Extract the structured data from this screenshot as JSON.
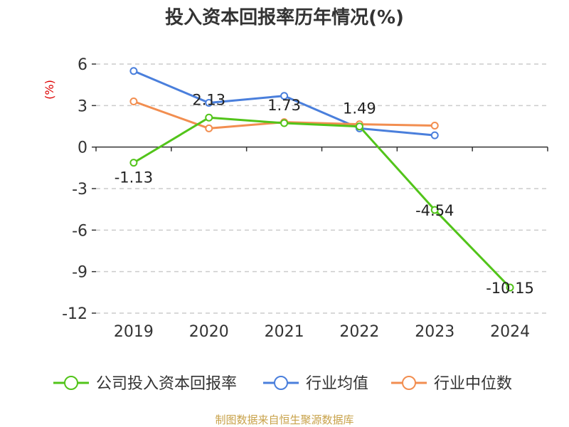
{
  "chart_data": {
    "type": "line",
    "title": "投入资本回报率历年情况(%)",
    "ylabel": "(%)",
    "xlabel": "",
    "categories": [
      "2019",
      "2020",
      "2021",
      "2022",
      "2023",
      "2024"
    ],
    "ylim": [
      -12,
      6
    ],
    "yticks": [
      6,
      3,
      0,
      -3,
      -6,
      -9,
      -12
    ],
    "grid": true,
    "legend_position": "bottom",
    "series": [
      {
        "name": "公司投入资本回报率",
        "color": "#52c41a",
        "values": [
          -1.13,
          2.13,
          1.73,
          1.49,
          -4.54,
          -10.15
        ],
        "labels": [
          "-1.13",
          "2.13",
          "1.73",
          "1.49",
          "-4.54",
          "-10.15"
        ]
      },
      {
        "name": "行业均值",
        "color": "#4a7fdc",
        "values": [
          5.5,
          3.2,
          3.7,
          1.35,
          0.85,
          null
        ]
      },
      {
        "name": "行业中位数",
        "color": "#f28e50",
        "values": [
          3.3,
          1.35,
          1.8,
          1.65,
          1.55,
          null
        ]
      }
    ]
  },
  "footer": {
    "source": "制图数据来自恒生聚源数据库"
  }
}
